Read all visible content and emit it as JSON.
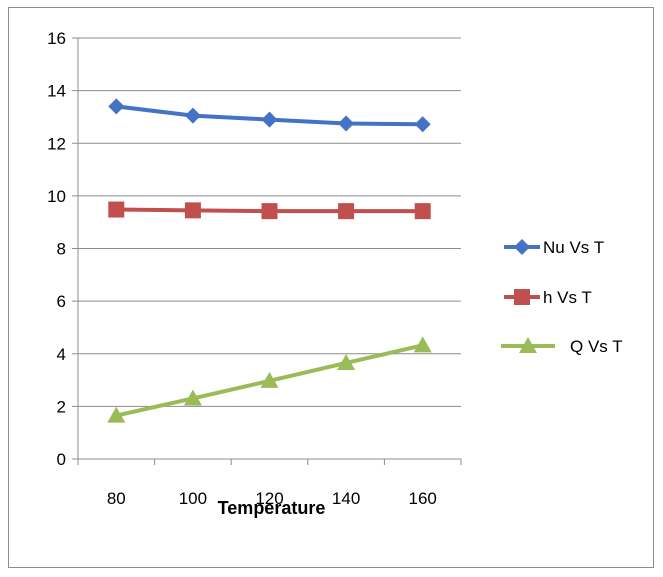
{
  "chart_data": {
    "type": "line",
    "title": "",
    "xlabel": "Temperature",
    "ylabel": "",
    "categories": [
      "80",
      "100",
      "120",
      "140",
      "160"
    ],
    "ylim": [
      0,
      16
    ],
    "yticks": [
      0,
      2,
      4,
      6,
      8,
      10,
      12,
      14,
      16
    ],
    "grid": "horizontal",
    "legend": "right",
    "series": [
      {
        "name": "Nu Vs T",
        "color": "#4472C4",
        "marker": "diamond",
        "values": [
          13.4,
          13.05,
          12.9,
          12.75,
          12.72
        ]
      },
      {
        "name": "h Vs T",
        "color": "#C0504D",
        "marker": "square",
        "values": [
          9.48,
          9.45,
          9.42,
          9.42,
          9.42
        ]
      },
      {
        "name": "Q Vs T",
        "color": "#9BBB59",
        "marker": "triangle",
        "values": [
          1.65,
          2.3,
          2.97,
          3.65,
          4.32
        ]
      }
    ]
  }
}
